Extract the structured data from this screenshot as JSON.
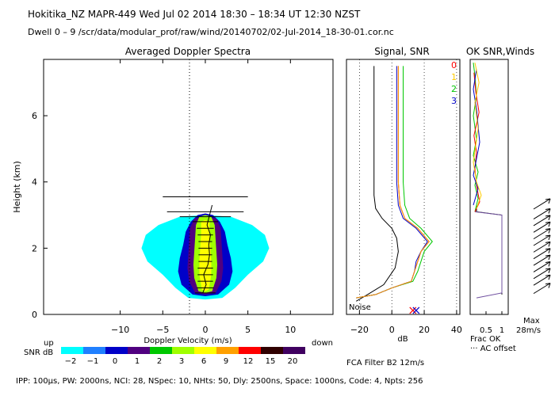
{
  "header": {
    "line1": "Hokitika_NZ   MAPR-449   Wed Jul 02 2014  18:30  –  18:34 UT 12:30 NZST",
    "line2": "Dwell   0  –   9    /scr/data/modular_prof/raw/wind/20140702/02-Jul-2014_18-30-01.cor.nc"
  },
  "footer": {
    "params": "IPP: 100μs,  PW: 2000ns,  NCI:  28,  NSpec: 10,  NHts: 50,  Dly: 2500ns,  Space: 1000ns,  Code: 4,  Npts: 256",
    "filter": "FCA Filter B2 12m/s"
  },
  "colorbar": {
    "title": "SNR dB",
    "labels": [
      "-2",
      "-1",
      "0",
      "1",
      "2",
      "3",
      "6",
      "9",
      "12",
      "15",
      "20"
    ],
    "colors": [
      "#00ffff",
      "#2080ff",
      "#0000c8",
      "#500080",
      "#00c800",
      "#a0ff00",
      "#ffff00",
      "#ffa000",
      "#ff0000",
      "#300000",
      "#400060"
    ]
  },
  "chart_data": [
    {
      "type": "heatmap",
      "title": "Averaged Doppler Spectra",
      "xlabel": "Doppler Velocity (m/s)",
      "ylabel": "Height (km)",
      "xlim": [
        -19,
        15
      ],
      "ylim": [
        0,
        7.7
      ],
      "xticks": [
        -10,
        -5,
        0,
        5,
        10
      ],
      "yticks": [
        0,
        2,
        4,
        6
      ],
      "left_note": "up",
      "right_note": "down",
      "contour_levels": [
        {
          "snr": -2,
          "half_width": [
            [
              0.5,
              2.0
            ],
            [
              0.8,
              3.5
            ],
            [
              1.2,
              5.0
            ],
            [
              1.6,
              6.8
            ],
            [
              2.0,
              7.5
            ],
            [
              2.4,
              7.0
            ],
            [
              2.7,
              5.5
            ],
            [
              2.95,
              3.0
            ]
          ]
        },
        {
          "snr": 0,
          "half_width": [
            [
              0.6,
              1.5
            ],
            [
              0.9,
              2.8
            ],
            [
              1.3,
              3.2
            ],
            [
              1.7,
              3.0
            ],
            [
              2.1,
              2.6
            ],
            [
              2.5,
              2.3
            ],
            [
              2.8,
              1.7
            ],
            [
              3.0,
              0.9
            ]
          ]
        },
        {
          "snr": 1,
          "half_width": [
            [
              0.65,
              1.2
            ],
            [
              1.0,
              1.9
            ],
            [
              1.4,
              2.1
            ],
            [
              1.8,
              2.0
            ],
            [
              2.2,
              1.9
            ],
            [
              2.6,
              1.8
            ],
            [
              2.9,
              1.3
            ]
          ]
        },
        {
          "snr": 3,
          "half_width": [
            [
              0.7,
              0.8
            ],
            [
              1.1,
              1.3
            ],
            [
              1.5,
              1.4
            ],
            [
              1.9,
              1.3
            ],
            [
              2.3,
              1.2
            ],
            [
              2.7,
              1.1
            ],
            [
              2.95,
              0.7
            ]
          ]
        },
        {
          "snr": 6,
          "half_width": [
            [
              0.75,
              0.4
            ],
            [
              1.2,
              0.7
            ],
            [
              1.6,
              0.7
            ],
            [
              2.0,
              0.6
            ],
            [
              2.4,
              0.5
            ],
            [
              2.8,
              0.5
            ]
          ]
        }
      ],
      "mean_velocity_profile": [
        [
          0.65,
          -0.3
        ],
        [
          0.9,
          0.1
        ],
        [
          1.2,
          -0.2
        ],
        [
          1.5,
          0.3
        ],
        [
          1.8,
          0.5
        ],
        [
          2.1,
          0.4
        ],
        [
          2.4,
          0.6
        ],
        [
          2.7,
          0.2
        ],
        [
          3.0,
          0.5
        ],
        [
          3.3,
          0.8
        ]
      ],
      "error_bars": [
        {
          "height": 3.55,
          "half_width": 5.0
        },
        {
          "height": 3.1,
          "half_width": 4.5
        },
        {
          "height": 2.95,
          "half_width": 3.0
        },
        {
          "height": 2.8,
          "half_width": 1.5
        },
        {
          "height": 2.6,
          "half_width": 1.0
        },
        {
          "height": 2.4,
          "half_width": 0.9
        },
        {
          "height": 2.2,
          "half_width": 0.8
        },
        {
          "height": 2.0,
          "half_width": 0.8
        },
        {
          "height": 1.8,
          "half_width": 0.8
        },
        {
          "height": 1.6,
          "half_width": 0.8
        },
        {
          "height": 1.4,
          "half_width": 0.9
        },
        {
          "height": 1.2,
          "half_width": 0.9
        },
        {
          "height": 1.0,
          "half_width": 0.9
        },
        {
          "height": 0.8,
          "half_width": 1.0
        },
        {
          "height": 0.65,
          "half_width": 1.2
        }
      ]
    },
    {
      "type": "line",
      "title": "Signal, SNR",
      "xlabel": "dB",
      "xlim": [
        -28,
        42
      ],
      "ylim": [
        0,
        7.7
      ],
      "xticks": [
        -20,
        0,
        20,
        40
      ],
      "note": "Noise",
      "series": [
        {
          "color": "#000000",
          "points": [
            [
              -22,
              0.4
            ],
            [
              -15,
              0.6
            ],
            [
              -5,
              0.9
            ],
            [
              2,
              1.4
            ],
            [
              4,
              1.9
            ],
            [
              3,
              2.3
            ],
            [
              0,
              2.6
            ],
            [
              -6,
              2.9
            ],
            [
              -10,
              3.2
            ],
            [
              -11,
              3.6
            ],
            [
              -11,
              4.2
            ],
            [
              -11,
              5.5
            ],
            [
              -11,
              7.5
            ]
          ]
        },
        {
          "color": "#ff0000",
          "points": [
            [
              -22,
              0.5
            ],
            [
              -10,
              0.6
            ],
            [
              0,
              0.8
            ],
            [
              12,
              1.0
            ],
            [
              14,
              1.3
            ],
            [
              16,
              1.6
            ],
            [
              18,
              1.9
            ],
            [
              23,
              2.2
            ],
            [
              16,
              2.6
            ],
            [
              8,
              2.9
            ],
            [
              5,
              3.3
            ],
            [
              4,
              4.0
            ],
            [
              4,
              5.5
            ],
            [
              4,
              7.5
            ]
          ]
        },
        {
          "color": "#00c800",
          "points": [
            [
              -22,
              0.5
            ],
            [
              -10,
              0.6
            ],
            [
              0,
              0.8
            ],
            [
              13,
              1.0
            ],
            [
              16,
              1.3
            ],
            [
              18,
              1.6
            ],
            [
              20,
              1.9
            ],
            [
              25,
              2.2
            ],
            [
              18,
              2.6
            ],
            [
              11,
              2.9
            ],
            [
              8,
              3.3
            ],
            [
              7,
              4.0
            ],
            [
              7,
              5.5
            ],
            [
              7,
              7.5
            ]
          ]
        },
        {
          "color": "#0000c8",
          "points": [
            [
              -22,
              0.5
            ],
            [
              -10,
              0.6
            ],
            [
              0,
              0.8
            ],
            [
              12,
              1.0
            ],
            [
              14,
              1.3
            ],
            [
              15,
              1.6
            ],
            [
              18,
              1.9
            ],
            [
              22,
              2.2
            ],
            [
              15,
              2.6
            ],
            [
              7,
              2.9
            ],
            [
              4,
              3.3
            ],
            [
              3,
              4.0
            ],
            [
              3,
              5.5
            ],
            [
              3,
              7.5
            ]
          ]
        },
        {
          "color": "#ff9900",
          "points": [
            [
              -22,
              0.5
            ],
            [
              -10,
              0.6
            ],
            [
              0,
              0.8
            ],
            [
              12,
              1.0
            ],
            [
              14,
              1.3
            ],
            [
              16,
              1.6
            ],
            [
              18,
              1.9
            ],
            [
              23,
              2.2
            ],
            [
              16,
              2.6
            ],
            [
              8,
              2.9
            ],
            [
              5,
              3.3
            ],
            [
              4,
              4.0
            ],
            [
              4,
              5.5
            ],
            [
              4,
              7.5
            ]
          ]
        }
      ],
      "markers": [
        {
          "x": 13,
          "y": 0.12,
          "color": "#ff0000"
        },
        {
          "x": 15,
          "y": 0.12,
          "color": "#0000c8"
        }
      ]
    },
    {
      "type": "line",
      "title": "OK SNR,Winds",
      "xlabel": "Frac OK",
      "xlim": [
        0,
        1.2
      ],
      "ylim": [
        0,
        7.7
      ],
      "xtick_labels": [
        "0.5",
        "1"
      ],
      "legend": [
        {
          "label": "0",
          "color": "#ff0000"
        },
        {
          "label": "1",
          "color": "#ffcc00"
        },
        {
          "label": "2",
          "color": "#00c800"
        },
        {
          "label": "3",
          "color": "#0000c8"
        }
      ],
      "offset_note": "··· AC offset",
      "series": [
        {
          "color": "#000000",
          "points": [
            [
              1.0,
              0.6
            ],
            [
              1.0,
              3.0
            ],
            [
              0.2,
              3.1
            ],
            [
              0.2,
              3.3
            ]
          ]
        },
        {
          "color": "#7050a0",
          "points": [
            [
              0.2,
              0.5
            ],
            [
              1.0,
              0.65
            ],
            [
              1.0,
              3.0
            ],
            [
              0.15,
              3.1
            ]
          ]
        },
        {
          "color": "#00c800",
          "points": [
            [
              0.15,
              3.1
            ],
            [
              0.25,
              3.5
            ],
            [
              0.15,
              3.9
            ],
            [
              0.25,
              4.3
            ],
            [
              0.1,
              4.8
            ],
            [
              0.2,
              5.3
            ],
            [
              0.1,
              6.0
            ],
            [
              0.2,
              6.6
            ],
            [
              0.15,
              7.2
            ],
            [
              0.1,
              7.6
            ]
          ]
        },
        {
          "color": "#ff0000",
          "points": [
            [
              0.15,
              3.1
            ],
            [
              0.3,
              3.4
            ],
            [
              0.2,
              3.9
            ],
            [
              0.15,
              4.4
            ],
            [
              0.2,
              4.9
            ],
            [
              0.12,
              5.4
            ],
            [
              0.28,
              6.1
            ],
            [
              0.18,
              6.7
            ],
            [
              0.12,
              7.3
            ]
          ]
        },
        {
          "color": "#0000c8",
          "points": [
            [
              0.1,
              3.3
            ],
            [
              0.25,
              3.8
            ],
            [
              0.1,
              4.2
            ],
            [
              0.2,
              4.7
            ],
            [
              0.3,
              5.2
            ],
            [
              0.2,
              6.2
            ],
            [
              0.1,
              6.8
            ],
            [
              0.2,
              7.4
            ]
          ]
        },
        {
          "color": "#ffcc00",
          "points": [
            [
              0.2,
              3.2
            ],
            [
              0.35,
              3.6
            ],
            [
              0.2,
              4.0
            ],
            [
              0.1,
              4.6
            ],
            [
              0.25,
              5.6
            ],
            [
              0.15,
              6.4
            ],
            [
              0.28,
              7.0
            ],
            [
              0.15,
              7.6
            ]
          ]
        }
      ],
      "wind_barbs": {
        "max_label": "Max",
        "max_value": "28m/s",
        "heights": [
          0.75,
          1.0,
          1.2,
          1.4,
          1.6,
          1.8,
          2.0,
          2.2,
          2.4,
          2.6,
          2.8,
          3.0,
          3.3
        ]
      }
    }
  ]
}
